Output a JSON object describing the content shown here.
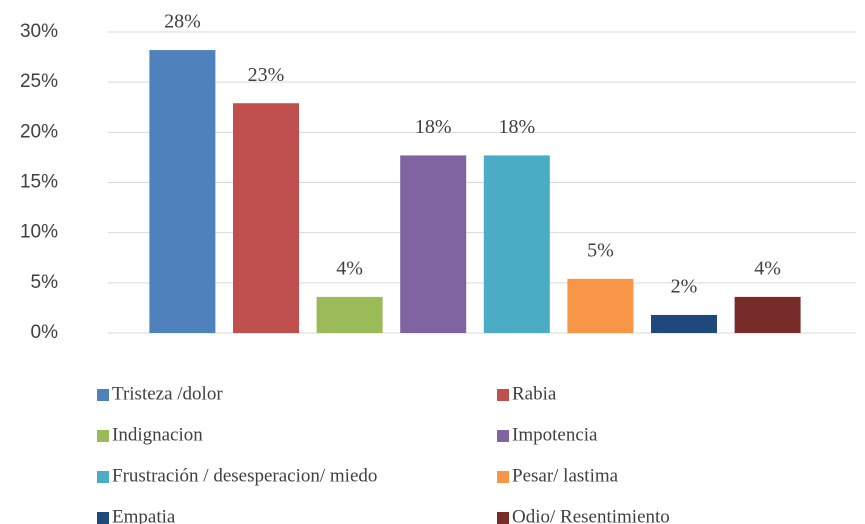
{
  "chart_data": {
    "type": "bar",
    "series": [
      {
        "name": "Tristeza /dolor",
        "color": "#4f81bd",
        "values": [
          28.2
        ],
        "value_labels": [
          "28%"
        ]
      },
      {
        "name": "Rabia",
        "color": "#c0504d",
        "values": [
          22.9
        ],
        "value_labels": [
          "23%"
        ]
      },
      {
        "name": "Indignacion",
        "color": "#9bbb59",
        "values": [
          3.6
        ],
        "value_labels": [
          "4%"
        ]
      },
      {
        "name": "Impotencia",
        "color": "#8064a2",
        "values": [
          17.7
        ],
        "value_labels": [
          "18%"
        ]
      },
      {
        "name": "Frustración / desesperacion/ miedo",
        "color": "#4bacc6",
        "values": [
          17.7
        ],
        "value_labels": [
          "18%"
        ]
      },
      {
        "name": "Pesar/ lastima",
        "color": "#f79646",
        "values": [
          5.4
        ],
        "value_labels": [
          "5%"
        ]
      },
      {
        "name": "Empatia",
        "color": "#1f497d",
        "values": [
          1.8
        ],
        "value_labels": [
          "2%"
        ]
      },
      {
        "name": "Odio/ Resentimiento",
        "color": "#772c2a",
        "values": [
          3.6
        ],
        "value_labels": [
          "4%"
        ]
      }
    ],
    "ylim": [
      0,
      30
    ],
    "yticks": [
      {
        "value": 0,
        "label": "0%"
      },
      {
        "value": 5,
        "label": "5%"
      },
      {
        "value": 10,
        "label": "10%"
      },
      {
        "value": 15,
        "label": "15%"
      },
      {
        "value": 20,
        "label": "20%"
      },
      {
        "value": 25,
        "label": "25%"
      },
      {
        "value": 30,
        "label": "30%"
      }
    ],
    "grid": true,
    "legend": "bottom"
  }
}
